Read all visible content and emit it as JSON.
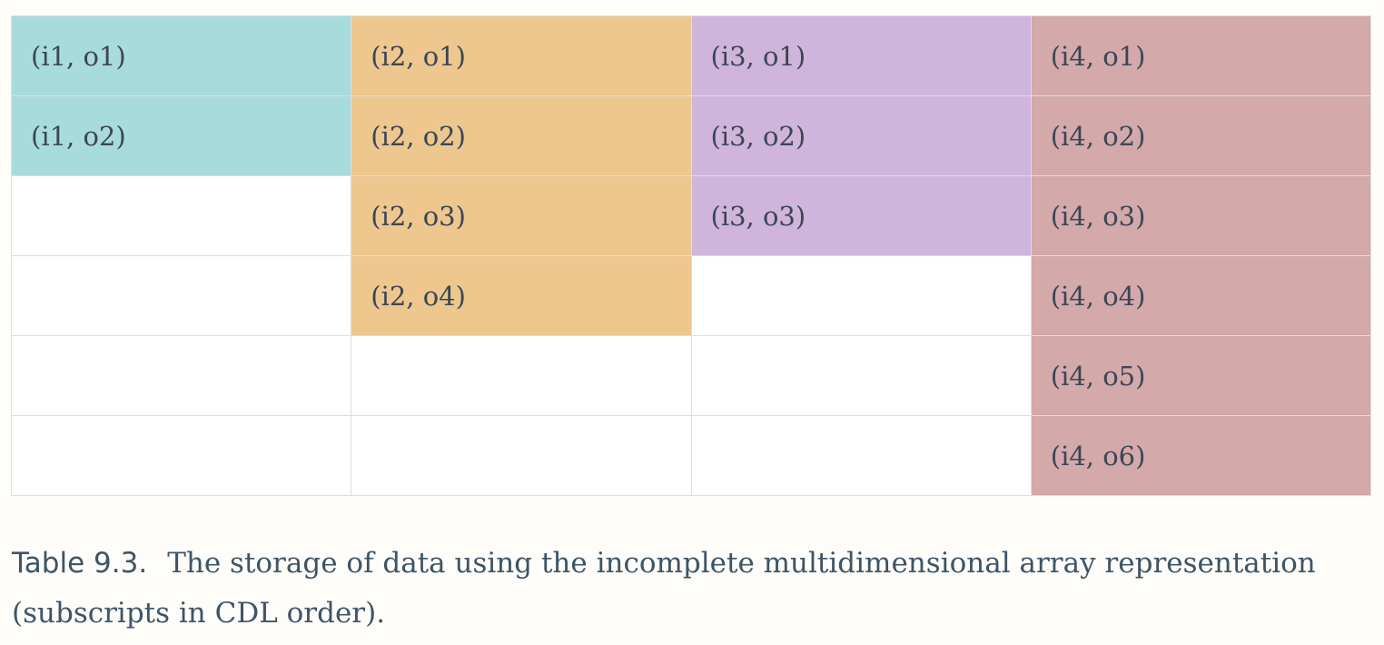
{
  "table": {
    "rows": [
      [
        "(i1, o1)",
        "(i2, o1)",
        "(i3, o1)",
        "(i4, o1)"
      ],
      [
        "(i1, o2)",
        "(i2, o2)",
        "(i3, o2)",
        "(i4, o2)"
      ],
      [
        "",
        "(i2, o3)",
        "(i3, o3)",
        "(i4, o3)"
      ],
      [
        "",
        "(i2, o4)",
        "",
        "(i4, o4)"
      ],
      [
        "",
        "",
        "",
        "(i4, o5)"
      ],
      [
        "",
        "",
        "",
        "(i4, o6)"
      ]
    ],
    "column_colors": [
      "#a8dbdc",
      "#edc78e",
      "#cfb5db",
      "#d3a9a9"
    ]
  },
  "caption": {
    "number": "Table 9.3.",
    "text": "The storage of data using the incomplete multidimensional array representation (subscripts in CDL order)."
  }
}
